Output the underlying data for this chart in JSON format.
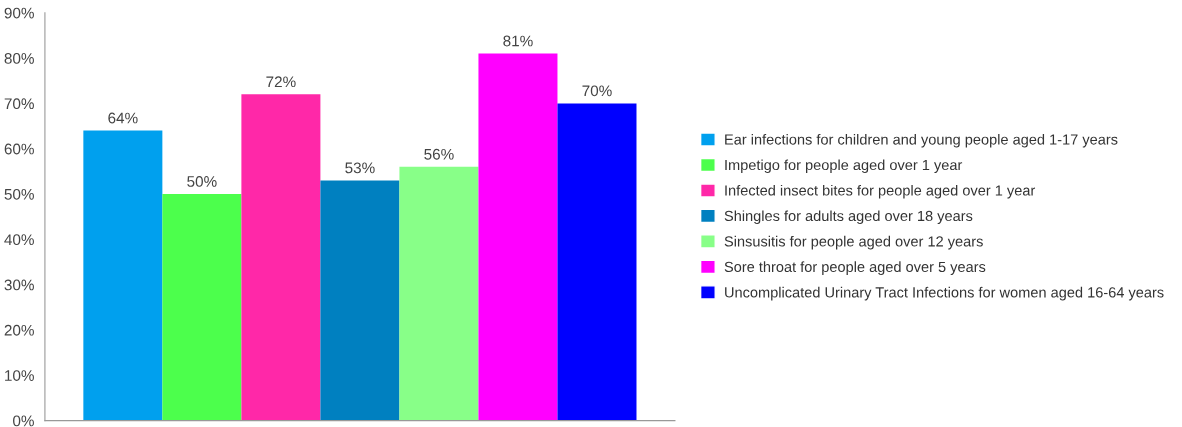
{
  "chart_data": {
    "type": "bar",
    "categories": [
      null
    ],
    "series": [
      {
        "name": "Ear infections for children and young people aged 1-17 years",
        "color": "#00a0ee",
        "values": [
          64
        ],
        "value_labels": [
          "64%"
        ]
      },
      {
        "name": "Impetigo for people aged over 1 year",
        "color": "#4cff4c",
        "values": [
          50
        ],
        "value_labels": [
          "50%"
        ]
      },
      {
        "name": "Infected insect bites for people aged over 1 year",
        "color": "#ff28a8",
        "values": [
          72
        ],
        "value_labels": [
          "72%"
        ]
      },
      {
        "name": "Shingles for adults aged over 18 years",
        "color": "#0080c0",
        "values": [
          53
        ],
        "value_labels": [
          "53%"
        ]
      },
      {
        "name": "Sinsusitis for people aged over 12 years",
        "color": "#88ff88",
        "values": [
          56
        ],
        "value_labels": [
          "56%"
        ]
      },
      {
        "name": "Sore throat for people aged over 5 years",
        "color": "#ff00ff",
        "values": [
          81
        ],
        "value_labels": [
          "81%"
        ]
      },
      {
        "name": "Uncomplicated Urinary Tract Infections for women aged 16-64 years",
        "color": "#0000ff",
        "values": [
          70
        ],
        "value_labels": [
          "70%"
        ]
      }
    ],
    "ylim": [
      0,
      90
    ],
    "yticks": [
      {
        "value": 0,
        "label": "0%"
      },
      {
        "value": 10,
        "label": "10%"
      },
      {
        "value": 20,
        "label": "20%"
      },
      {
        "value": 30,
        "label": "30%"
      },
      {
        "value": 40,
        "label": "40%"
      },
      {
        "value": 50,
        "label": "50%"
      },
      {
        "value": 60,
        "label": "60%"
      },
      {
        "value": 70,
        "label": "70%"
      },
      {
        "value": 80,
        "label": "80%"
      },
      {
        "value": 90,
        "label": "90%"
      }
    ],
    "grid": false,
    "legend": "right"
  }
}
